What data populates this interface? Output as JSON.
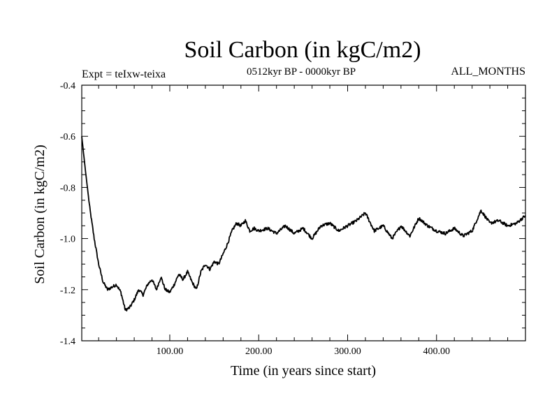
{
  "chart_data": {
    "type": "line",
    "title": "Soil Carbon (in kgC/m2)",
    "subtitle_left": "Expt = teIxw-teixa",
    "subtitle_center": "0512kyr BP - 0000kyr BP",
    "subtitle_right": "ALL_MONTHS",
    "xlabel": "Time (in years since start)",
    "ylabel": "Soil Carbon (in kgC/m2)",
    "xlim": [
      1,
      500
    ],
    "ylim": [
      -1.4,
      -0.4
    ],
    "x_ticks": [
      100,
      200,
      300,
      400
    ],
    "x_tick_labels": [
      "100.00",
      "200.00",
      "300.00",
      "400.00"
    ],
    "y_ticks": [
      -1.4,
      -1.2,
      -1.0,
      -0.8,
      -0.6,
      -0.4
    ],
    "y_tick_labels": [
      "-1.4",
      "-1.2",
      "-1.0",
      "-0.8",
      "-0.6",
      "-0.4"
    ],
    "grid": false,
    "line_color": "#000000",
    "series": [
      {
        "x": [
          1,
          5,
          10,
          15,
          20,
          25,
          30,
          35,
          40,
          45,
          50,
          55,
          60,
          65,
          70,
          75,
          80,
          85,
          90,
          95,
          100,
          105,
          110,
          115,
          120,
          125,
          130,
          135,
          140,
          145,
          150,
          155,
          160,
          165,
          170,
          175,
          180,
          185,
          190,
          195,
          200,
          210,
          220,
          230,
          240,
          250,
          260,
          270,
          280,
          290,
          300,
          310,
          320,
          330,
          340,
          350,
          360,
          370,
          380,
          390,
          400,
          410,
          420,
          430,
          440,
          450,
          460,
          470,
          480,
          490,
          500
        ],
        "y": [
          -0.6,
          -0.73,
          -0.88,
          -1.0,
          -1.1,
          -1.17,
          -1.2,
          -1.19,
          -1.18,
          -1.21,
          -1.28,
          -1.27,
          -1.24,
          -1.2,
          -1.22,
          -1.18,
          -1.16,
          -1.2,
          -1.15,
          -1.2,
          -1.21,
          -1.18,
          -1.14,
          -1.16,
          -1.13,
          -1.17,
          -1.2,
          -1.13,
          -1.1,
          -1.12,
          -1.09,
          -1.1,
          -1.06,
          -1.02,
          -0.97,
          -0.94,
          -0.95,
          -0.93,
          -0.97,
          -0.96,
          -0.97,
          -0.96,
          -0.98,
          -0.95,
          -0.98,
          -0.96,
          -1.0,
          -0.95,
          -0.94,
          -0.97,
          -0.95,
          -0.93,
          -0.9,
          -0.97,
          -0.95,
          -1.0,
          -0.95,
          -0.99,
          -0.92,
          -0.95,
          -0.97,
          -0.98,
          -0.96,
          -0.99,
          -0.97,
          -0.89,
          -0.94,
          -0.93,
          -0.95,
          -0.94,
          -0.91
        ]
      }
    ]
  }
}
